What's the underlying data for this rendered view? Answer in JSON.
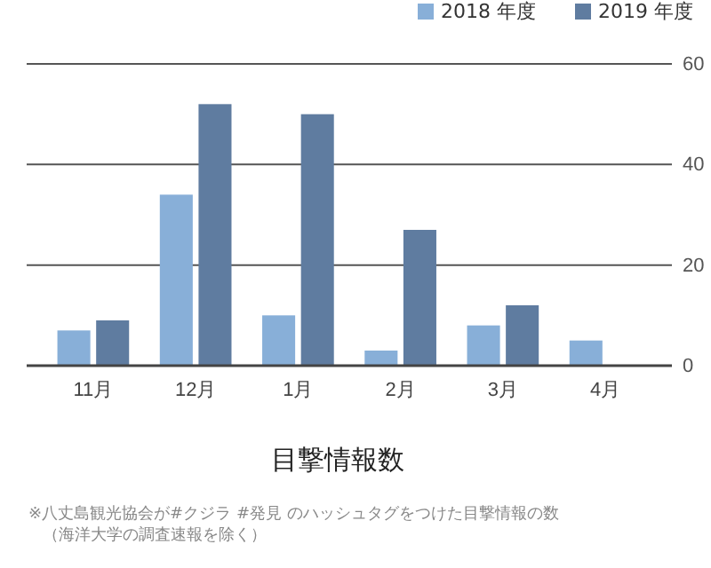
{
  "chart_data": {
    "type": "bar",
    "title": "目撃情報数",
    "categories": [
      "11月",
      "12月",
      "1月",
      "2月",
      "3月",
      "4月"
    ],
    "series": [
      {
        "name": "2018 年度",
        "color": "#88afd8",
        "values": [
          7,
          34,
          10,
          3,
          8,
          5
        ]
      },
      {
        "name": "2019 年度",
        "color": "#5f7ca0",
        "values": [
          9,
          52,
          50,
          27,
          12,
          null
        ]
      }
    ],
    "ylim": [
      0,
      60
    ],
    "yticks": [
      0,
      20,
      40,
      60
    ],
    "grid": "y",
    "legend": "top right",
    "annotations": [
      "※八丈島観光協会が#クジラ #発見 のハッシュタグをつけた目撃情報の数",
      "（海洋大学の調査速報を除く）"
    ]
  }
}
